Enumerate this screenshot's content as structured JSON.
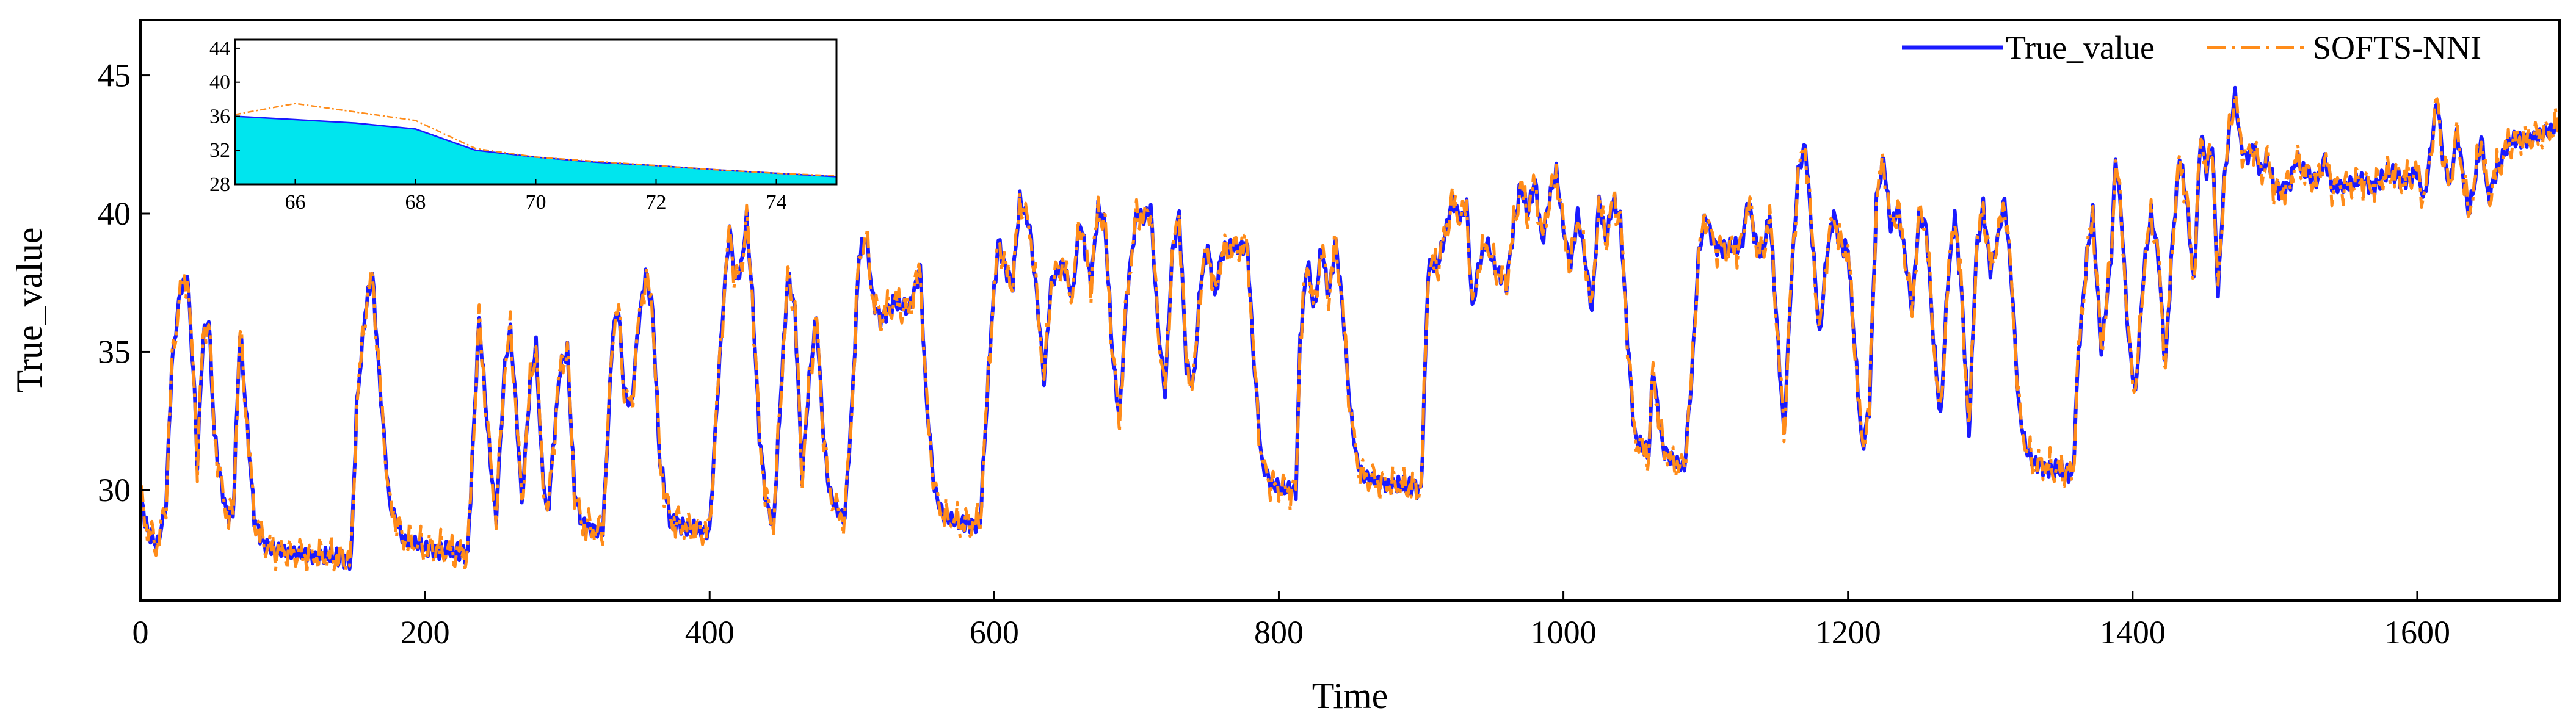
{
  "chart_data": {
    "type": "line",
    "title": "",
    "xlabel": "Time",
    "ylabel": "True_value",
    "xlim": [
      0,
      1700
    ],
    "ylim": [
      26,
      47
    ],
    "x_ticks": [
      0,
      200,
      400,
      600,
      800,
      1000,
      1200,
      1400,
      1600
    ],
    "y_ticks": [
      30,
      35,
      40,
      45
    ],
    "legend": {
      "placement": "top-right"
    },
    "colors": {
      "true_value": "#1a1aff",
      "softs_nni": "#ff8c1a",
      "inset_fill": "#00e5ee"
    },
    "keypoints": [
      [
        0,
        29.8
      ],
      [
        5,
        28.5
      ],
      [
        12,
        28.0
      ],
      [
        18,
        29.5
      ],
      [
        22,
        34.5
      ],
      [
        28,
        37.2
      ],
      [
        33,
        37.8
      ],
      [
        38,
        33.5
      ],
      [
        40,
        31.0
      ],
      [
        44,
        35.5
      ],
      [
        48,
        36.2
      ],
      [
        52,
        32.0
      ],
      [
        56,
        30.5
      ],
      [
        60,
        29.3
      ],
      [
        65,
        29.0
      ],
      [
        70,
        35.8
      ],
      [
        74,
        33.0
      ],
      [
        80,
        29.0
      ],
      [
        86,
        28.1
      ],
      [
        95,
        27.8
      ],
      [
        110,
        27.7
      ],
      [
        130,
        27.6
      ],
      [
        148,
        27.5
      ],
      [
        152,
        33.0
      ],
      [
        158,
        36.5
      ],
      [
        163,
        37.8
      ],
      [
        168,
        34.0
      ],
      [
        175,
        29.5
      ],
      [
        185,
        28.2
      ],
      [
        200,
        27.9
      ],
      [
        215,
        27.8
      ],
      [
        230,
        27.7
      ],
      [
        234,
        32.0
      ],
      [
        238,
        36.2
      ],
      [
        242,
        33.5
      ],
      [
        246,
        31.0
      ],
      [
        250,
        29.0
      ],
      [
        256,
        34.5
      ],
      [
        260,
        35.8
      ],
      [
        264,
        33.0
      ],
      [
        268,
        29.5
      ],
      [
        274,
        34.0
      ],
      [
        278,
        35.2
      ],
      [
        282,
        31.0
      ],
      [
        286,
        29.0
      ],
      [
        295,
        34.5
      ],
      [
        300,
        35.0
      ],
      [
        305,
        30.0
      ],
      [
        310,
        28.8
      ],
      [
        318,
        28.6
      ],
      [
        325,
        28.5
      ],
      [
        332,
        35.8
      ],
      [
        336,
        36.5
      ],
      [
        340,
        33.5
      ],
      [
        345,
        33.0
      ],
      [
        350,
        36.0
      ],
      [
        355,
        37.8
      ],
      [
        360,
        36.5
      ],
      [
        365,
        31.0
      ],
      [
        372,
        29.0
      ],
      [
        385,
        28.6
      ],
      [
        400,
        28.5
      ],
      [
        405,
        33.0
      ],
      [
        410,
        37.0
      ],
      [
        414,
        39.5
      ],
      [
        418,
        37.5
      ],
      [
        422,
        38.0
      ],
      [
        426,
        39.8
      ],
      [
        430,
        37.0
      ],
      [
        435,
        32.0
      ],
      [
        440,
        29.5
      ],
      [
        445,
        28.8
      ],
      [
        450,
        33.5
      ],
      [
        455,
        37.8
      ],
      [
        460,
        36.5
      ],
      [
        465,
        30.5
      ],
      [
        470,
        34.0
      ],
      [
        475,
        36.3
      ],
      [
        480,
        32.0
      ],
      [
        484,
        30.0
      ],
      [
        490,
        29.2
      ],
      [
        495,
        29.0
      ],
      [
        500,
        33.0
      ],
      [
        505,
        38.5
      ],
      [
        510,
        39.2
      ],
      [
        515,
        36.8
      ],
      [
        520,
        36.2
      ],
      [
        530,
        36.8
      ],
      [
        540,
        36.5
      ],
      [
        548,
        38.0
      ],
      [
        552,
        33.5
      ],
      [
        558,
        30.0
      ],
      [
        565,
        29.0
      ],
      [
        575,
        28.8
      ],
      [
        590,
        28.8
      ],
      [
        598,
        36.0
      ],
      [
        603,
        39.0
      ],
      [
        608,
        38.0
      ],
      [
        613,
        37.5
      ],
      [
        618,
        40.5
      ],
      [
        625,
        39.5
      ],
      [
        630,
        37.0
      ],
      [
        635,
        34.0
      ],
      [
        640,
        37.5
      ],
      [
        648,
        38.2
      ],
      [
        655,
        37.0
      ],
      [
        660,
        39.8
      ],
      [
        668,
        37.5
      ],
      [
        673,
        40.2
      ],
      [
        678,
        39.5
      ],
      [
        683,
        35.0
      ],
      [
        688,
        32.5
      ],
      [
        693,
        37.0
      ],
      [
        700,
        40.0
      ],
      [
        705,
        39.8
      ],
      [
        710,
        40.2
      ],
      [
        715,
        36.0
      ],
      [
        720,
        33.5
      ],
      [
        725,
        38.5
      ],
      [
        730,
        40.0
      ],
      [
        735,
        34.5
      ],
      [
        740,
        33.8
      ],
      [
        745,
        37.5
      ],
      [
        750,
        38.8
      ],
      [
        755,
        37.0
      ],
      [
        760,
        38.6
      ],
      [
        770,
        38.8
      ],
      [
        778,
        38.8
      ],
      [
        782,
        35.0
      ],
      [
        788,
        31.0
      ],
      [
        795,
        30.2
      ],
      [
        805,
        30.0
      ],
      [
        812,
        30.0
      ],
      [
        815,
        35.5
      ],
      [
        820,
        38.3
      ],
      [
        825,
        36.5
      ],
      [
        830,
        38.8
      ],
      [
        835,
        37.0
      ],
      [
        840,
        39.0
      ],
      [
        845,
        36.5
      ],
      [
        850,
        33.0
      ],
      [
        855,
        31.0
      ],
      [
        860,
        30.5
      ],
      [
        870,
        30.3
      ],
      [
        880,
        30.2
      ],
      [
        895,
        30.1
      ],
      [
        900,
        30.0
      ],
      [
        905,
        38.0
      ],
      [
        912,
        38.2
      ],
      [
        918,
        39.5
      ],
      [
        922,
        40.5
      ],
      [
        928,
        39.8
      ],
      [
        932,
        40.3
      ],
      [
        936,
        36.5
      ],
      [
        940,
        38.0
      ],
      [
        946,
        39.0
      ],
      [
        952,
        38.0
      ],
      [
        960,
        37.5
      ],
      [
        965,
        39.5
      ],
      [
        970,
        41.0
      ],
      [
        975,
        40.0
      ],
      [
        980,
        41.2
      ],
      [
        985,
        39.0
      ],
      [
        990,
        40.5
      ],
      [
        995,
        41.5
      ],
      [
        1000,
        39.5
      ],
      [
        1005,
        38.0
      ],
      [
        1010,
        40.0
      ],
      [
        1015,
        38.5
      ],
      [
        1020,
        36.5
      ],
      [
        1025,
        40.5
      ],
      [
        1030,
        39.0
      ],
      [
        1035,
        40.5
      ],
      [
        1040,
        39.8
      ],
      [
        1045,
        35.5
      ],
      [
        1050,
        32.0
      ],
      [
        1055,
        31.5
      ],
      [
        1060,
        31.3
      ],
      [
        1063,
        34.5
      ],
      [
        1066,
        33.0
      ],
      [
        1070,
        31.5
      ],
      [
        1078,
        31.0
      ],
      [
        1085,
        30.8
      ],
      [
        1090,
        34.0
      ],
      [
        1095,
        38.5
      ],
      [
        1100,
        40.0
      ],
      [
        1105,
        39.0
      ],
      [
        1110,
        38.7
      ],
      [
        1125,
        38.8
      ],
      [
        1130,
        40.5
      ],
      [
        1135,
        39.0
      ],
      [
        1140,
        38.5
      ],
      [
        1145,
        40.0
      ],
      [
        1150,
        36.0
      ],
      [
        1155,
        32.0
      ],
      [
        1160,
        37.5
      ],
      [
        1165,
        41.5
      ],
      [
        1170,
        42.5
      ],
      [
        1175,
        39.0
      ],
      [
        1180,
        35.5
      ],
      [
        1185,
        38.5
      ],
      [
        1190,
        40.0
      ],
      [
        1195,
        38.8
      ],
      [
        1200,
        38.7
      ],
      [
        1205,
        35.0
      ],
      [
        1210,
        31.5
      ],
      [
        1215,
        33.0
      ],
      [
        1220,
        40.5
      ],
      [
        1225,
        42.0
      ],
      [
        1230,
        39.5
      ],
      [
        1235,
        40.2
      ],
      [
        1240,
        38.5
      ],
      [
        1245,
        36.5
      ],
      [
        1250,
        40.0
      ],
      [
        1255,
        39.5
      ],
      [
        1260,
        35.5
      ],
      [
        1265,
        32.5
      ],
      [
        1270,
        37.5
      ],
      [
        1275,
        40.0
      ],
      [
        1280,
        37.0
      ],
      [
        1285,
        32.0
      ],
      [
        1290,
        38.5
      ],
      [
        1295,
        40.3
      ],
      [
        1300,
        38.0
      ],
      [
        1305,
        39.0
      ],
      [
        1310,
        40.5
      ],
      [
        1315,
        37.5
      ],
      [
        1320,
        33.0
      ],
      [
        1325,
        31.5
      ],
      [
        1330,
        31.0
      ],
      [
        1340,
        30.8
      ],
      [
        1350,
        30.7
      ],
      [
        1358,
        30.5
      ],
      [
        1362,
        35.0
      ],
      [
        1368,
        38.5
      ],
      [
        1372,
        40.0
      ],
      [
        1378,
        35.0
      ],
      [
        1385,
        38.5
      ],
      [
        1388,
        42.0
      ],
      [
        1392,
        40.0
      ],
      [
        1397,
        35.5
      ],
      [
        1402,
        33.5
      ],
      [
        1408,
        38.0
      ],
      [
        1413,
        40.0
      ],
      [
        1418,
        38.5
      ],
      [
        1423,
        34.5
      ],
      [
        1428,
        39.0
      ],
      [
        1433,
        42.0
      ],
      [
        1438,
        40.5
      ],
      [
        1443,
        37.5
      ],
      [
        1448,
        43.0
      ],
      [
        1452,
        41.5
      ],
      [
        1456,
        42.5
      ],
      [
        1460,
        37.0
      ],
      [
        1464,
        41.0
      ],
      [
        1468,
        43.0
      ],
      [
        1472,
        44.3
      ],
      [
        1476,
        42.5
      ],
      [
        1480,
        42.0
      ],
      [
        1485,
        42.5
      ],
      [
        1490,
        41.5
      ],
      [
        1495,
        42.0
      ],
      [
        1500,
        40.8
      ],
      [
        1510,
        41.0
      ],
      [
        1515,
        42.0
      ],
      [
        1520,
        41.5
      ],
      [
        1530,
        41.2
      ],
      [
        1535,
        42.0
      ],
      [
        1540,
        41.0
      ],
      [
        1550,
        41.0
      ],
      [
        1560,
        41.2
      ],
      [
        1570,
        41.0
      ],
      [
        1580,
        41.5
      ],
      [
        1590,
        41.2
      ],
      [
        1600,
        41.5
      ],
      [
        1605,
        40.5
      ],
      [
        1610,
        42.5
      ],
      [
        1614,
        44.2
      ],
      [
        1618,
        42.0
      ],
      [
        1623,
        41.0
      ],
      [
        1628,
        43.0
      ],
      [
        1632,
        41.5
      ],
      [
        1636,
        40.0
      ],
      [
        1640,
        41.0
      ],
      [
        1645,
        42.8
      ],
      [
        1650,
        40.5
      ],
      [
        1655,
        41.5
      ],
      [
        1660,
        42.0
      ],
      [
        1665,
        42.6
      ],
      [
        1675,
        42.7
      ],
      [
        1685,
        42.8
      ],
      [
        1692,
        43.0
      ],
      [
        1700,
        43.2
      ]
    ],
    "series": [
      {
        "name": "True_value",
        "style": "solid"
      },
      {
        "name": "SOFTS-NNI",
        "style": "dash-dot"
      }
    ],
    "inset": {
      "xlim": [
        65,
        75
      ],
      "ylim": [
        28,
        45
      ],
      "x_ticks": [
        66,
        68,
        70,
        72,
        74
      ],
      "y_ticks": [
        28,
        32,
        36,
        40,
        44
      ],
      "true_value": [
        [
          65,
          36.0
        ],
        [
          66,
          35.6
        ],
        [
          67,
          35.2
        ],
        [
          68,
          34.5
        ],
        [
          69,
          32.0
        ],
        [
          70,
          31.2
        ],
        [
          71,
          30.6
        ],
        [
          72,
          30.2
        ],
        [
          73,
          29.7
        ],
        [
          74,
          29.3
        ],
        [
          75,
          28.9
        ]
      ],
      "softs_nni": [
        [
          65,
          36.2
        ],
        [
          66,
          37.5
        ],
        [
          67,
          36.5
        ],
        [
          68,
          35.5
        ],
        [
          69,
          32.2
        ],
        [
          70,
          31.2
        ],
        [
          71,
          30.7
        ],
        [
          72,
          30.2
        ],
        [
          73,
          29.7
        ],
        [
          74,
          29.3
        ],
        [
          75,
          29.0
        ]
      ]
    }
  }
}
